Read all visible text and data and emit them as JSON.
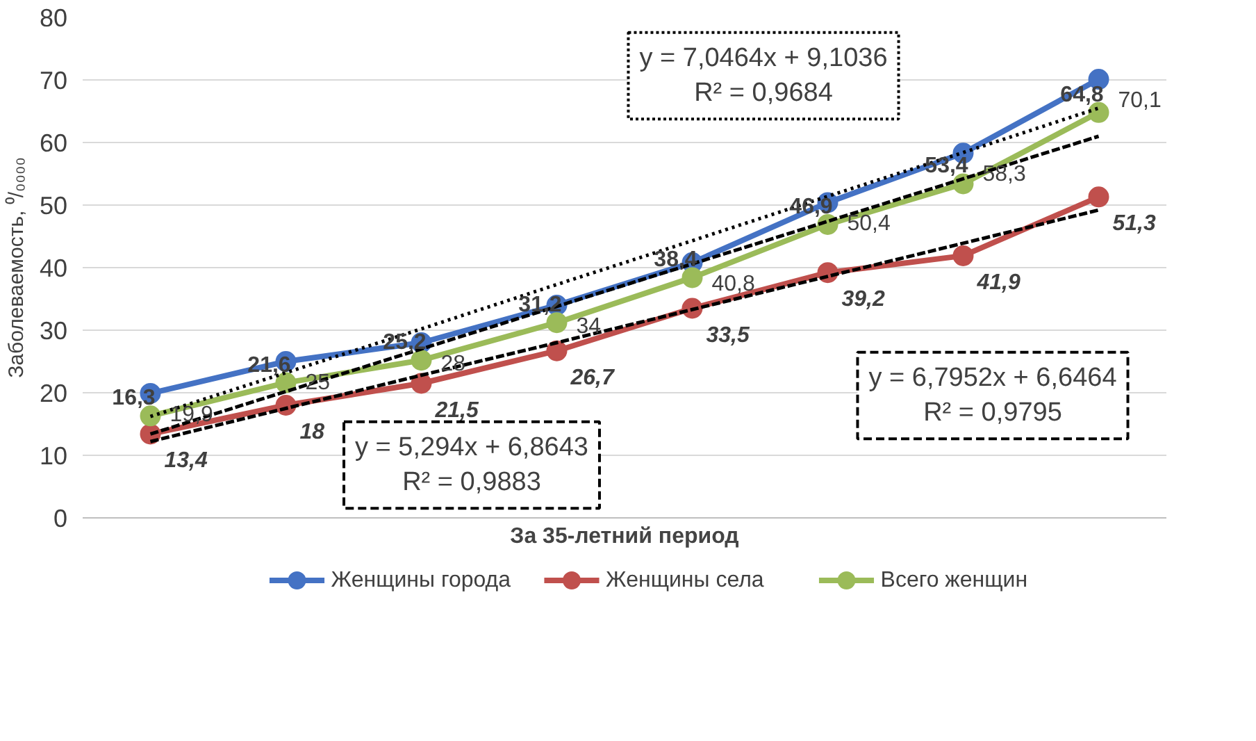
{
  "chart_data": {
    "type": "line",
    "xlabel": "За 35-летний период",
    "ylabel": "Заболеваемость, ⁰/₀₀₀₀",
    "categories": [
      null,
      null,
      null,
      null,
      null,
      null,
      null,
      null
    ],
    "ylim": [
      0,
      80
    ],
    "yticks": [
      0,
      10,
      20,
      30,
      40,
      50,
      60,
      70,
      80
    ],
    "grid": "y",
    "legend": "bottom",
    "marker": "circle",
    "line_style": "solid",
    "series": [
      {
        "name": "Женщины города",
        "color": "#4472c4",
        "values": [
          19.9,
          25,
          28,
          34,
          40.8,
          50.4,
          58.3,
          70.1
        ],
        "value_labels": [
          "19,9",
          "25",
          "28",
          "34",
          "40,8",
          "50,4",
          "58,3",
          "70,1"
        ]
      },
      {
        "name": "Женщины села",
        "color": "#c0504d",
        "values": [
          13.4,
          18,
          21.5,
          26.7,
          33.5,
          39.2,
          41.9,
          51.3
        ],
        "value_labels": [
          "13,4",
          "18",
          "21,5",
          "26,7",
          "33,5",
          "39,2",
          "41,9",
          "51,3"
        ]
      },
      {
        "name": "Всего женщин",
        "color": "#9bbb59",
        "values": [
          16.3,
          21.6,
          25.2,
          31.2,
          38.4,
          46.9,
          53.4,
          64.8
        ],
        "value_labels": [
          "16,3",
          "21,6",
          "25,2",
          "31,2",
          "38,4",
          "46,9",
          "53,4",
          "64,8"
        ]
      },
      {
        "type": "line",
        "color": "#000000",
        "line_style": "dotted",
        "marker": "none",
        "values": [
          16.2,
          23.2,
          30.2,
          37.3,
          44.3,
          51.4,
          58.4,
          65.5
        ]
      },
      {
        "type": "line",
        "color": "#000000",
        "line_style": "dashed",
        "marker": "none",
        "values": [
          12.2,
          17.5,
          22.8,
          28,
          33.3,
          38.6,
          43.9,
          49.2
        ]
      },
      {
        "type": "line",
        "color": "#000000",
        "line_style": "dashed",
        "marker": "none",
        "values": [
          13.4,
          20.2,
          27,
          33.8,
          40.6,
          47.4,
          54.2,
          61
        ]
      }
    ],
    "annotations": [
      "y = 7,0464x + 9,1036\nR² = 0,9684",
      "y = 5,294x + 6,8643\nR² = 0,9883",
      "y = 6,7952x + 6,6464\nR² = 0,9795"
    ]
  }
}
